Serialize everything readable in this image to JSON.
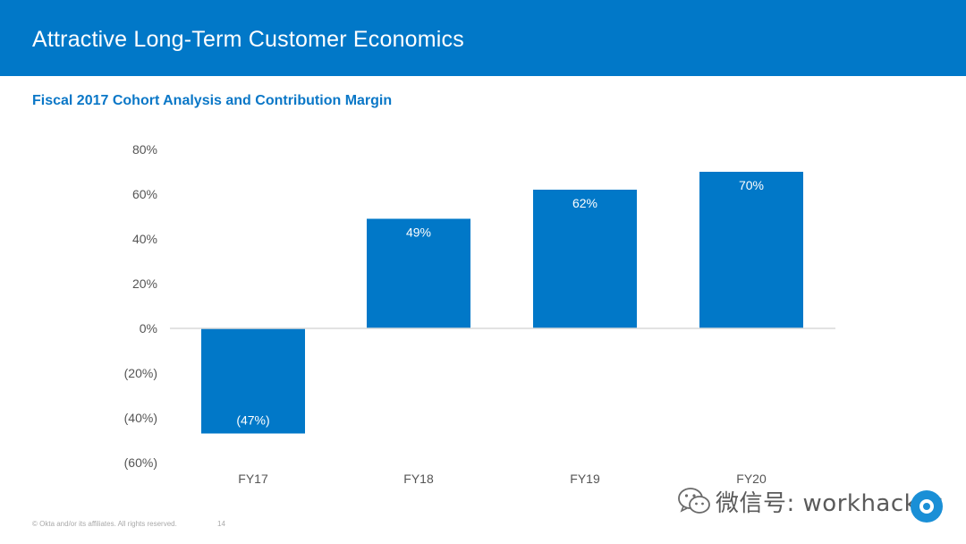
{
  "header": {
    "title": "Attractive Long-Term Customer Economics"
  },
  "subtitle": "Fiscal 2017 Cohort Analysis and Contribution Margin",
  "colors": {
    "header_bg": "#0178c8",
    "bar": "#0178c8",
    "subtitle": "#0a77c7",
    "axis_text": "#555555"
  },
  "chart_data": {
    "type": "bar",
    "title": "Fiscal 2017 Cohort Analysis and Contribution Margin",
    "categories": [
      "FY17",
      "FY18",
      "FY19",
      "FY20"
    ],
    "values": [
      -47,
      49,
      62,
      70
    ],
    "data_labels": [
      "(47%)",
      "49%",
      "62%",
      "70%"
    ],
    "xlabel": "",
    "ylabel": "",
    "ylim": [
      -60,
      80
    ],
    "yticks": [
      80,
      60,
      40,
      20,
      0,
      -20,
      -40,
      -60
    ],
    "ytick_labels": [
      "80%",
      "60%",
      "40%",
      "20%",
      "0%",
      "(20%)",
      "(40%)",
      "(60%)"
    ],
    "grid": false,
    "zero_line": true
  },
  "footer": {
    "copyright": "© Okta and/or its affiliates. All rights reserved.",
    "page_number": "14"
  },
  "watermark": {
    "text": "微信号: workhacker",
    "icon": "wechat-icon"
  },
  "logo": {
    "icon": "okta-logo-icon"
  }
}
